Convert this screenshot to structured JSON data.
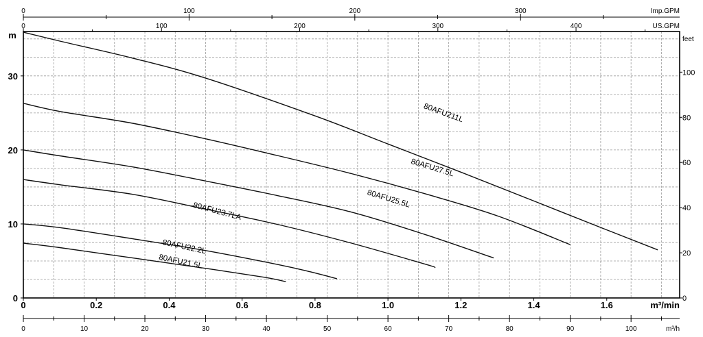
{
  "chart_data": {
    "type": "line",
    "grid": true,
    "axes": {
      "bottom_primary": {
        "label": "m³/min",
        "range": [
          0,
          1.8
        ],
        "ticks": [
          {
            "v": 0,
            "t": "0"
          },
          {
            "v": 0.2,
            "t": "0.2"
          },
          {
            "v": 0.4,
            "t": "0.4"
          },
          {
            "v": 0.6,
            "t": "0.6"
          },
          {
            "v": 0.8,
            "t": "0.8"
          },
          {
            "v": 1.0,
            "t": "1.0"
          },
          {
            "v": 1.2,
            "t": "1.2"
          },
          {
            "v": 1.4,
            "t": "1.4"
          },
          {
            "v": 1.6,
            "t": "1.6"
          }
        ]
      },
      "bottom_secondary": {
        "label": "m³/h",
        "range": [
          0,
          108
        ],
        "ticks": [
          {
            "v": 0,
            "t": "0"
          },
          {
            "v": 10,
            "t": "10"
          },
          {
            "v": 20,
            "t": "20"
          },
          {
            "v": 30,
            "t": "30"
          },
          {
            "v": 40,
            "t": "40"
          },
          {
            "v": 50,
            "t": "50"
          },
          {
            "v": 60,
            "t": "60"
          },
          {
            "v": 70,
            "t": "70"
          },
          {
            "v": 80,
            "t": "80"
          },
          {
            "v": 90,
            "t": "90"
          },
          {
            "v": 100,
            "t": "100"
          }
        ]
      },
      "top_imp": {
        "label": "Imp.GPM",
        "range": [
          0,
          396
        ],
        "ticks": [
          {
            "v": 0,
            "t": "0"
          },
          {
            "v": 100,
            "t": "100"
          },
          {
            "v": 200,
            "t": "200"
          },
          {
            "v": 300,
            "t": "300"
          }
        ],
        "minor_ticks": [
          50,
          150,
          250,
          350
        ]
      },
      "top_us": {
        "label": "US.GPM",
        "range": [
          0,
          475
        ],
        "ticks": [
          {
            "v": 0,
            "t": "0"
          },
          {
            "v": 100,
            "t": "100"
          },
          {
            "v": 200,
            "t": "200"
          },
          {
            "v": 300,
            "t": "300"
          },
          {
            "v": 400,
            "t": "400"
          }
        ],
        "minor_ticks": [
          50,
          150,
          250,
          350,
          450
        ]
      },
      "left": {
        "label": "m",
        "range": [
          0,
          36
        ],
        "ticks": [
          {
            "v": 0,
            "t": "0"
          },
          {
            "v": 10,
            "t": "10"
          },
          {
            "v": 20,
            "t": "20"
          },
          {
            "v": 30,
            "t": "30"
          }
        ]
      },
      "right": {
        "label": "feet",
        "range": [
          0,
          118
        ],
        "ticks": [
          {
            "v": 0,
            "t": "0"
          },
          {
            "v": 20,
            "t": "20"
          },
          {
            "v": 40,
            "t": "40"
          },
          {
            "v": 60,
            "t": "60"
          },
          {
            "v": 80,
            "t": "80"
          },
          {
            "v": 100,
            "t": "100"
          }
        ]
      }
    },
    "series": [
      {
        "name": "80AFU211L",
        "x": [
          0,
          0.1,
          0.3,
          0.5,
          0.8,
          1.0,
          1.2,
          1.4,
          1.6,
          1.74
        ],
        "y": [
          35.9,
          34.7,
          32.4,
          29.7,
          24.6,
          20.8,
          17.0,
          13.1,
          9.2,
          6.5
        ],
        "label_at": [
          1.15,
          24.7
        ],
        "label_angle": 20
      },
      {
        "name": "80AFU27.5L",
        "x": [
          0,
          0.1,
          0.3,
          0.5,
          0.7,
          0.9,
          1.1,
          1.3,
          1.5
        ],
        "y": [
          26.3,
          25.2,
          23.6,
          21.5,
          19.2,
          16.8,
          14.1,
          11.1,
          7.2
        ],
        "label_at": [
          1.12,
          17.3
        ],
        "label_angle": 17
      },
      {
        "name": "80AFU25.5L",
        "x": [
          0,
          0.1,
          0.3,
          0.5,
          0.7,
          0.9,
          1.1,
          1.29
        ],
        "y": [
          20.0,
          19.2,
          17.7,
          15.8,
          13.8,
          11.6,
          8.6,
          5.4
        ],
        "label_at": [
          1.0,
          13.1
        ],
        "label_angle": 17
      },
      {
        "name": "80AFU23.7LA",
        "x": [
          0,
          0.1,
          0.3,
          0.5,
          0.7,
          0.9,
          1.1,
          1.13
        ],
        "y": [
          16.0,
          15.3,
          14.0,
          12.0,
          9.9,
          7.4,
          4.6,
          4.1
        ],
        "label_at": [
          0.53,
          11.4
        ],
        "label_angle": 15
      },
      {
        "name": "80AFU22.2L",
        "x": [
          0,
          0.1,
          0.3,
          0.5,
          0.7,
          0.79,
          0.86
        ],
        "y": [
          10.0,
          9.5,
          8.0,
          6.4,
          4.5,
          3.5,
          2.6
        ],
        "label_at": [
          0.44,
          6.6
        ],
        "label_angle": 12
      },
      {
        "name": "80AFU21.5L",
        "x": [
          0,
          0.1,
          0.3,
          0.5,
          0.66,
          0.72
        ],
        "y": [
          7.4,
          6.8,
          5.4,
          4.0,
          2.8,
          2.2
        ],
        "label_at": [
          0.43,
          4.6
        ],
        "label_angle": 12
      }
    ]
  }
}
